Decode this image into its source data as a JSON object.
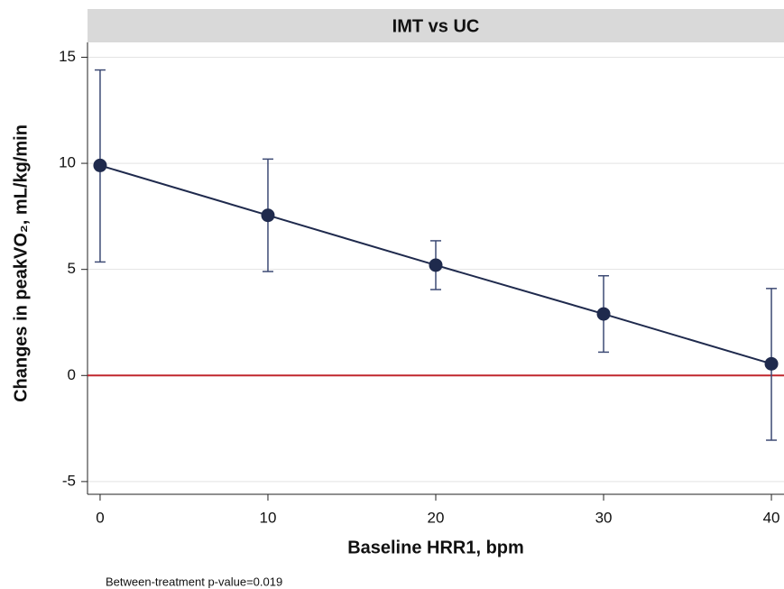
{
  "chart_data": {
    "type": "line",
    "title": "IMT vs UC",
    "x_label": "Baseline HRR1, bpm",
    "y_label": "Changes in peakVO₂, mL/kg/min",
    "note": "Between-treatment p-value=0.019",
    "x": [
      0,
      10,
      20,
      30,
      40
    ],
    "values": [
      9.9,
      7.55,
      5.2,
      2.9,
      0.55
    ],
    "lower": [
      5.35,
      4.9,
      4.05,
      1.1,
      -3.05
    ],
    "upper": [
      14.4,
      10.2,
      6.35,
      4.7,
      4.1
    ],
    "color": "#1f2a4d",
    "error_color": "#3d4a74",
    "reference_line": 0,
    "reference_color": "#c0262d",
    "xlim": [
      -0.75,
      40.75
    ],
    "xticks": [
      0,
      10,
      20,
      30,
      40
    ],
    "ylim": [
      -5.6,
      15.7
    ],
    "yticks": [
      -5,
      0,
      5,
      10,
      15
    ],
    "grid": true
  }
}
